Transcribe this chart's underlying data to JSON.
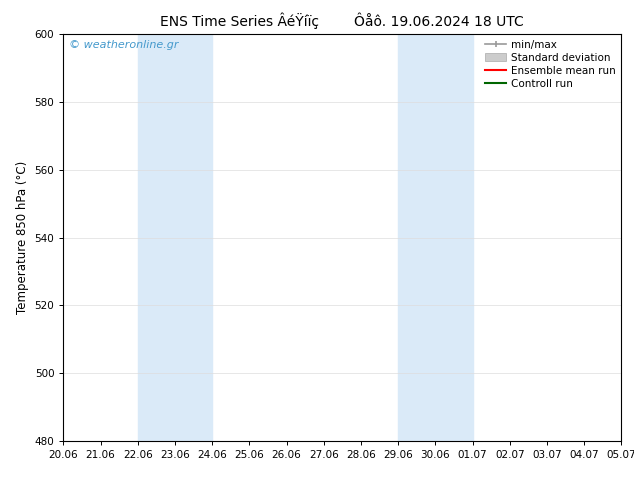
{
  "title": "ENS Time Series ÂéŸíïç        Ôåô. 19.06.2024 18 UTC",
  "ylabel": "Temperature 850 hPa (°C)",
  "ylim": [
    480,
    600
  ],
  "yticks": [
    480,
    500,
    520,
    540,
    560,
    580,
    600
  ],
  "xlabel_ticks": [
    "20.06",
    "21.06",
    "22.06",
    "23.06",
    "24.06",
    "25.06",
    "26.06",
    "27.06",
    "28.06",
    "29.06",
    "30.06",
    "01.07",
    "02.07",
    "03.07",
    "04.07",
    "05.07"
  ],
  "shade_bands": [
    [
      "22.06",
      "24.06"
    ],
    [
      "29.06",
      "01.07"
    ]
  ],
  "shade_color": "#daeaf8",
  "watermark_text": "© weatheronline.gr",
  "watermark_color": "#4499cc",
  "bg_color": "#ffffff",
  "spine_color": "#000000",
  "grid_color": "#dddddd",
  "title_fontsize": 10,
  "tick_fontsize": 7.5,
  "ylabel_fontsize": 8.5,
  "legend_fontsize": 7.5,
  "minmax_color": "#999999",
  "stddev_color": "#cccccc",
  "ensemble_color": "#ff0000",
  "control_color": "#006600"
}
